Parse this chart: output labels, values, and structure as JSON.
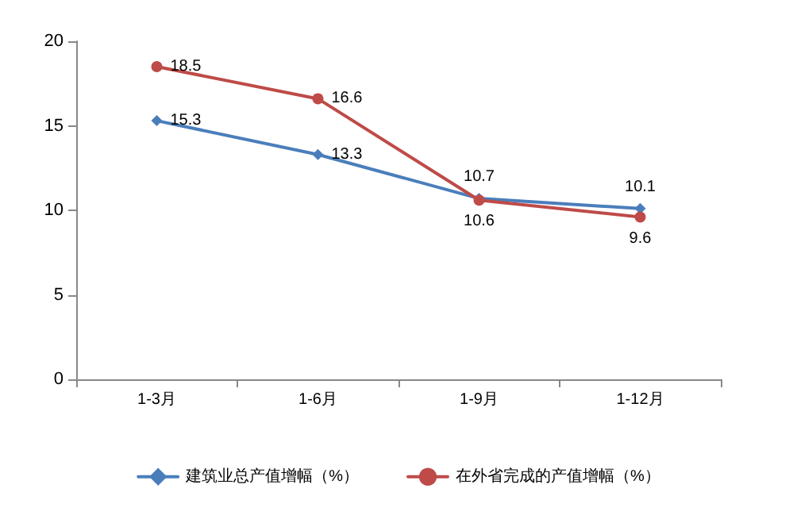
{
  "chart_data": {
    "type": "line",
    "categories": [
      "1-3月",
      "1-6月",
      "1-9月",
      "1-12月"
    ],
    "series": [
      {
        "name": "建筑业总产值增幅（%）",
        "color": "#4a7ebb",
        "marker": "diamond",
        "values": [
          15.3,
          13.3,
          10.7,
          10.1
        ]
      },
      {
        "name": "在外省完成的产值增幅（%）",
        "color": "#be4b48",
        "marker": "circle",
        "values": [
          18.5,
          16.6,
          10.6,
          9.6
        ]
      }
    ],
    "ylim": [
      0,
      20
    ],
    "yticks": [
      0,
      5,
      10,
      15,
      20
    ],
    "grid": false,
    "legend": "bottom",
    "data_labels": true
  }
}
